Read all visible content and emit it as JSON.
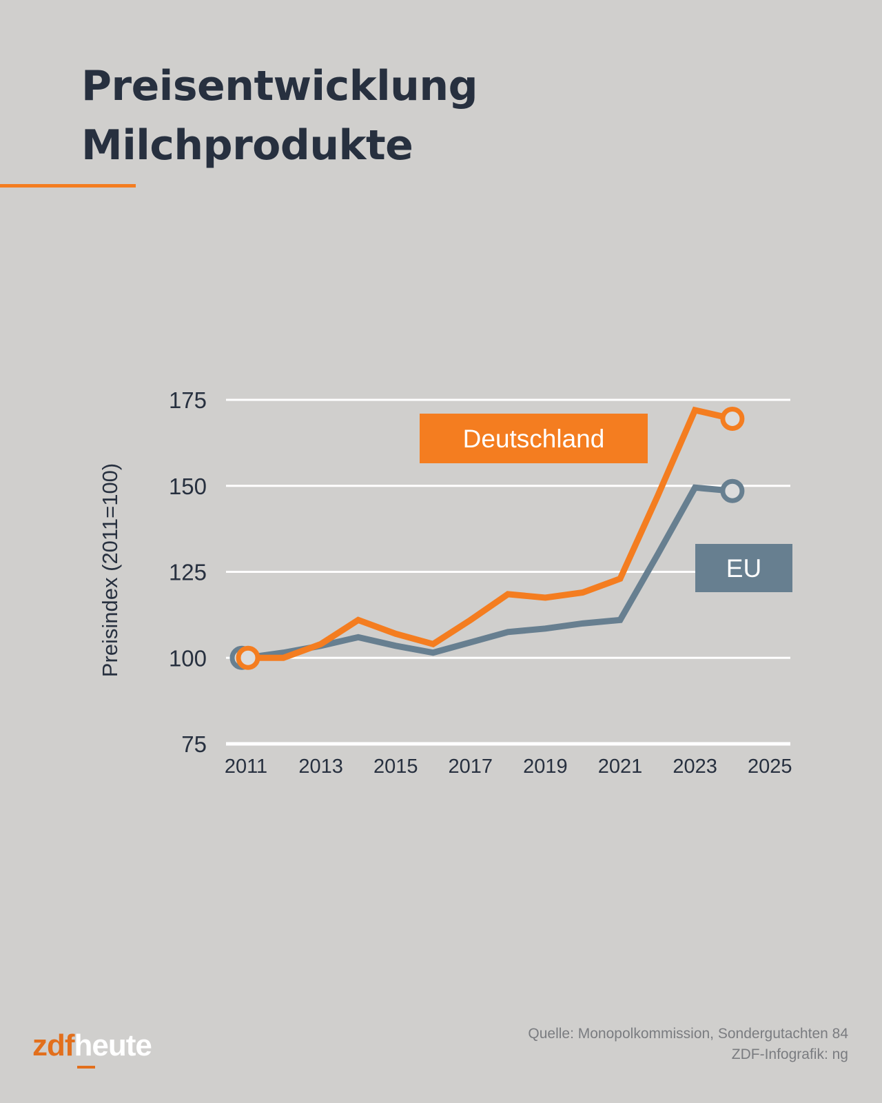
{
  "header": {
    "title_line1": "Preisentwicklung",
    "title_line2": "Milchprodukte"
  },
  "colors": {
    "background": "#d0cfcd",
    "deutschland": "#f47d20",
    "eu": "#677f90",
    "title": "#27303f",
    "grid": "#ffffff"
  },
  "chart_data": {
    "type": "line",
    "title": "Preisentwicklung Milchprodukte",
    "ylabel": "Preisindex (2011=100)",
    "xlabel": "",
    "xlim": [
      2011,
      2025
    ],
    "ylim": [
      75,
      175
    ],
    "xticks": [
      "2011",
      "2013",
      "2015",
      "2017",
      "2019",
      "2021",
      "2023",
      "2025"
    ],
    "yticks": [
      "75",
      "100",
      "125",
      "150",
      "175"
    ],
    "grid": "horizontal",
    "x": [
      2011,
      2012,
      2013,
      2014,
      2015,
      2016,
      2017,
      2018,
      2019,
      2020,
      2021,
      2022,
      2023,
      2024
    ],
    "series": [
      {
        "name": "Deutschland",
        "color": "#f47d20",
        "values": [
          100,
          100,
          104,
          111,
          107,
          104,
          111,
          118.5,
          117.5,
          119,
          123,
          147,
          172,
          169.5
        ]
      },
      {
        "name": "EU",
        "color": "#677f90",
        "values": [
          100,
          101.5,
          103.5,
          106,
          103.5,
          101.5,
          104.5,
          107.5,
          108.5,
          110,
          111,
          130,
          149.5,
          148.5
        ]
      }
    ]
  },
  "footer": {
    "source": "Quelle: Monopolkommission, Sondergutachten 84",
    "credit": "ZDF-Infografik: ng",
    "logo_zdf": "zdf",
    "logo_heute": "heute"
  }
}
